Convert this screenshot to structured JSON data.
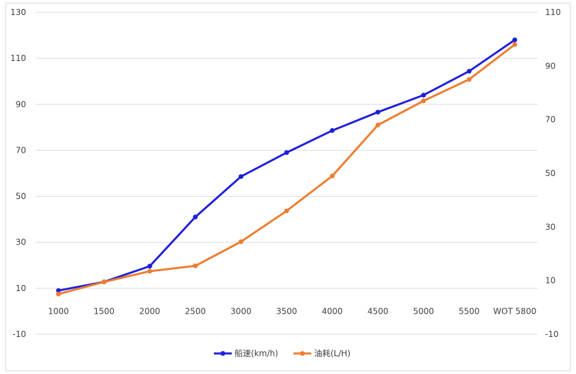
{
  "chart_data": {
    "type": "line",
    "categories": [
      "1000",
      "1500",
      "2000",
      "2500",
      "3000",
      "3500",
      "4000",
      "4500",
      "5000",
      "5500",
      "WOT 5800"
    ],
    "series": [
      {
        "name": "船速(km/h)",
        "axis": "left",
        "color": "#1f1fdb",
        "values": [
          9,
          12.8,
          19.6,
          41,
          58.6,
          69,
          78.6,
          86.6,
          94,
          104.4,
          118
        ]
      },
      {
        "name": "油耗(L/H)",
        "axis": "right",
        "color": "#ed7d31",
        "values": [
          5,
          9.5,
          13.5,
          15.5,
          24.5,
          36,
          49,
          68,
          77,
          85,
          98
        ]
      }
    ],
    "y_left": {
      "min": -10,
      "max": 130,
      "ticks": [
        "-10",
        "10",
        "30",
        "50",
        "70",
        "90",
        "110",
        "130"
      ]
    },
    "y_right": {
      "min": -10,
      "max": 110,
      "ticks": [
        "-10",
        "10",
        "30",
        "50",
        "70",
        "90",
        "110"
      ]
    },
    "grid": true,
    "legend_position": "bottom"
  }
}
